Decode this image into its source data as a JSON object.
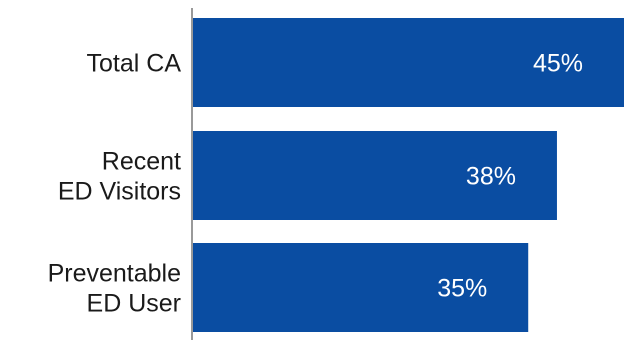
{
  "chart_data": {
    "type": "bar",
    "orientation": "horizontal",
    "title": "",
    "xlabel": "",
    "ylabel": "",
    "categories": [
      [
        "Total CA"
      ],
      [
        "Recent",
        "ED Visitors"
      ],
      [
        "Preventable",
        "ED User"
      ]
    ],
    "values": [
      45,
      38,
      35
    ],
    "value_labels": [
      "45%",
      "38%",
      "35%"
    ],
    "xlim": [
      0,
      45
    ],
    "grid": false,
    "legend": "none",
    "colors": {
      "bar": "#0a4da2",
      "axis": "#999999",
      "label_text": "#1a1a1a",
      "value_text": "#ffffff"
    }
  }
}
